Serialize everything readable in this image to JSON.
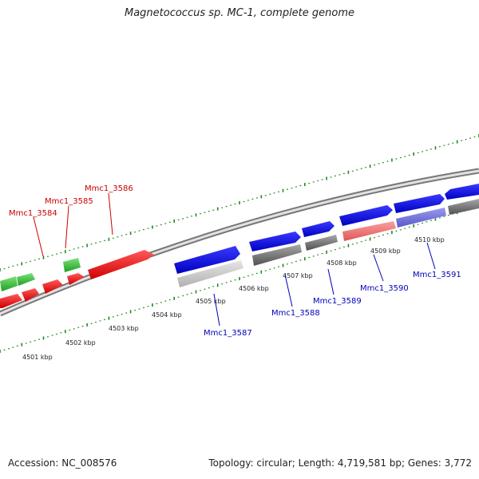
{
  "title": "Magnetococcus sp. MC-1, complete genome",
  "footer": {
    "accession": "Accession: NC_008576",
    "summary": "Topology: circular; Length: 4,719,581 bp; Genes: 3,772"
  },
  "kbp_labels": [
    "4501 kbp",
    "4502 kbp",
    "4503 kbp",
    "4504 kbp",
    "4505 kbp",
    "4506 kbp",
    "4507 kbp",
    "4508 kbp",
    "4509 kbp",
    "4510 kbp"
  ],
  "gene_labels_top": [
    "Mmc1_3584",
    "Mmc1_3585",
    "Mmc1_3586"
  ],
  "gene_labels_bottom": [
    "Mmc1_3587",
    "Mmc1_3588",
    "Mmc1_3589",
    "Mmc1_3590",
    "Mmc1_3591"
  ],
  "colors": {
    "tick": "#1a8a1a",
    "red": "#e00000",
    "green": "#33bb33",
    "blue": "#0000dd",
    "grey": "#707070",
    "light_grey": "#c8c8c8",
    "salmon": "#ee6f6f",
    "lavender": "#7777dd",
    "red_label": "#cc0000",
    "blue_label": "#0000bb"
  }
}
